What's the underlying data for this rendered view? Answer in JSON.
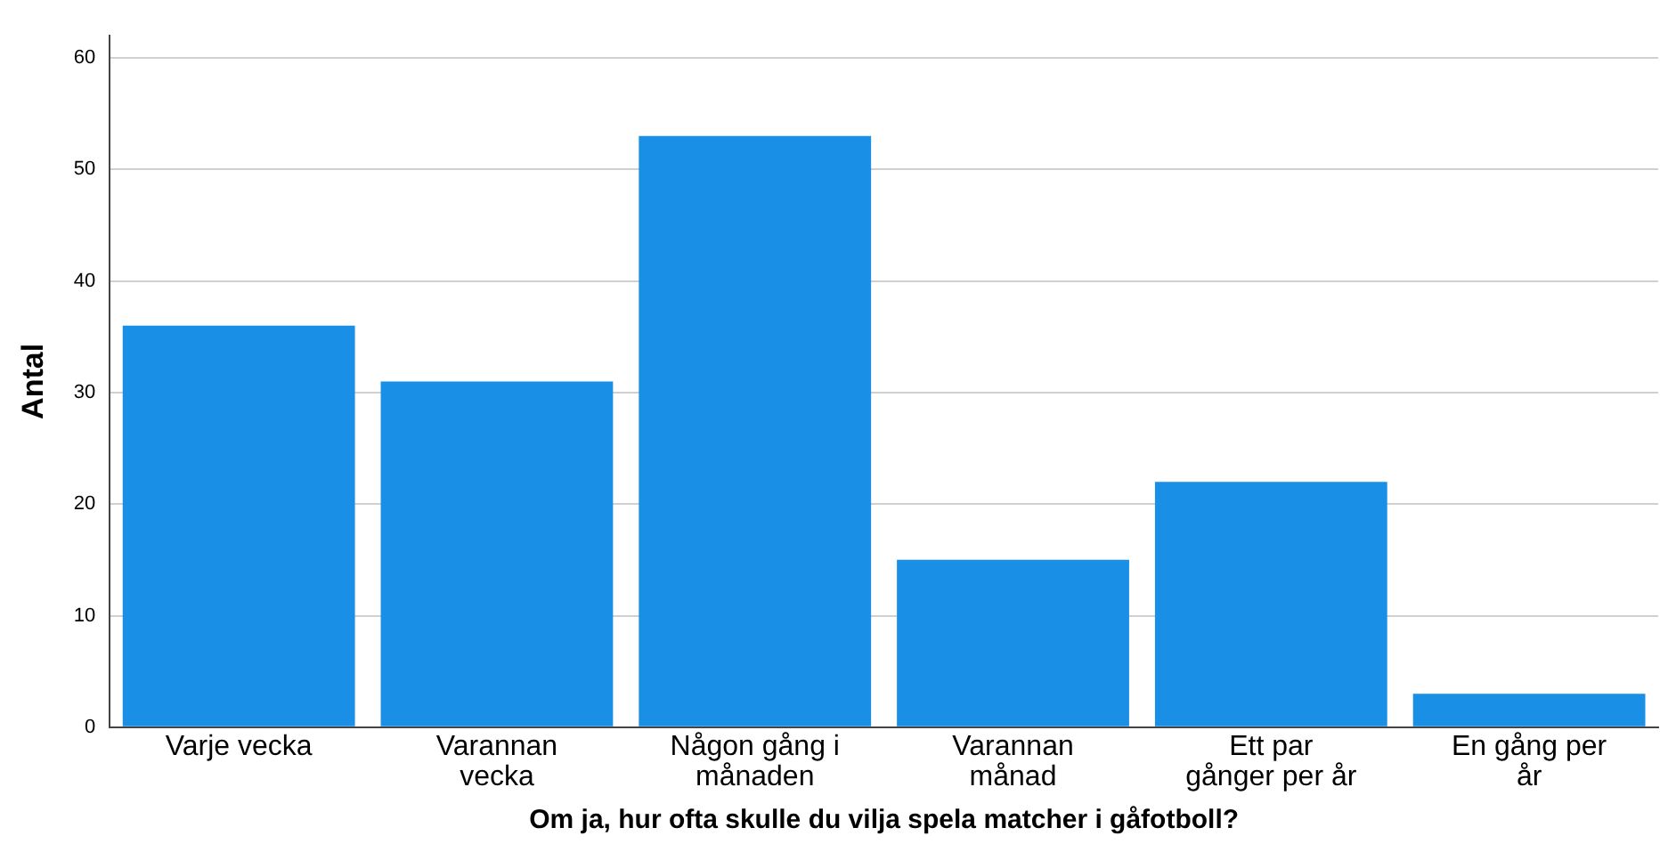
{
  "chart_data": {
    "type": "bar",
    "xlabel": "Om ja, hur ofta skulle du vilja spela matcher i gåfotboll?",
    "ylabel": "Antal",
    "categories": [
      "Varje vecka",
      "Varannan vecka",
      "Någon gång i månaden",
      "Varannan månad",
      "Ett par gånger per år",
      "En gång per år"
    ],
    "values": [
      36,
      31,
      53,
      15,
      22,
      3
    ],
    "color": "#1a8fe6",
    "ylim": [
      0,
      62
    ],
    "yticks": [
      0,
      10,
      20,
      30,
      40,
      50,
      60
    ],
    "grid": "y",
    "legend": false
  }
}
